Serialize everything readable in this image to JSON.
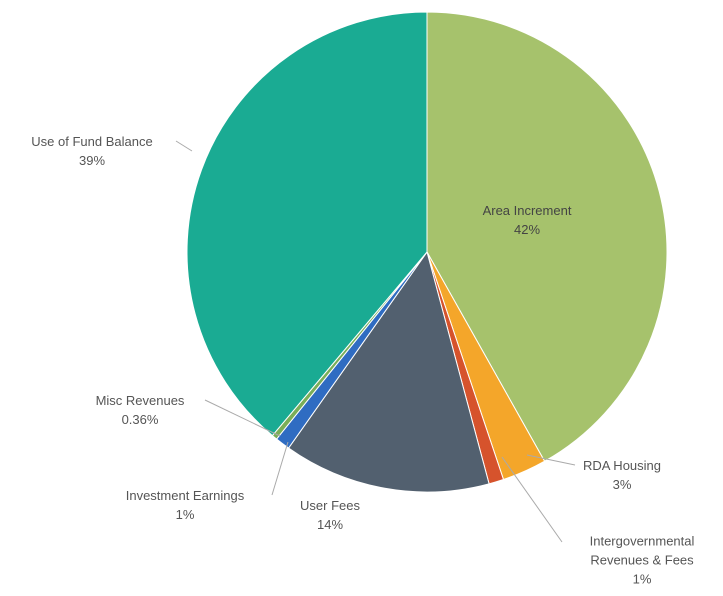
{
  "chart_data": {
    "type": "pie",
    "categories": [
      "Area Increment",
      "RDA Housing",
      "Intergovernmental Revenues & Fees",
      "User Fees",
      "Investment Earnings",
      "Misc Revenues",
      "Use of Fund Balance"
    ],
    "values": [
      42,
      3,
      1,
      14,
      1,
      0.36,
      39
    ],
    "value_labels": [
      "42%",
      "3%",
      "1%",
      "14%",
      "1%",
      "0.36%",
      "39%"
    ],
    "colors": [
      "#a6c26c",
      "#f4a62a",
      "#d6532c",
      "#52606f",
      "#2f6cc2",
      "#7aae58",
      "#1aab93"
    ]
  }
}
